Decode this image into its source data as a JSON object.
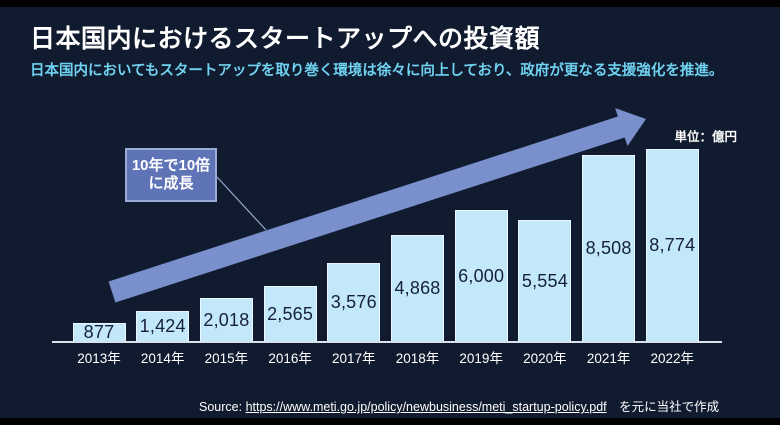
{
  "slide": {
    "title": "日本国内におけるスタートアップへの投資額",
    "subtitle": "日本国内においてもスタートアップを取り巻く環境は徐々に向上しており、政府が更なる支援強化を推進。",
    "unit_label": "単位：億円",
    "callout": {
      "line1": "10年で10倍",
      "line2": "に成長"
    },
    "source": {
      "prefix": "Source:",
      "url": "https://www.meti.go.jp/policy/newbusiness/meti_startup-policy.pdf",
      "suffix": "を元に当社で作成"
    }
  },
  "chart_data": {
    "type": "bar",
    "title": "日本国内におけるスタートアップへの投資額",
    "categories": [
      "2013年",
      "2014年",
      "2015年",
      "2016年",
      "2017年",
      "2018年",
      "2019年",
      "2020年",
      "2021年",
      "2022年"
    ],
    "values": [
      877,
      1424,
      2018,
      2565,
      3576,
      4868,
      6000,
      5554,
      8508,
      8774
    ],
    "value_labels": [
      "877",
      "1,424",
      "2,018",
      "2,565",
      "3,576",
      "4,868",
      "6,000",
      "5,554",
      "8,508",
      "8,774"
    ],
    "xlabel": "",
    "ylabel": "",
    "unit": "億円",
    "ylim": [
      0,
      9000
    ],
    "grid": false,
    "legend": "none",
    "annotation": "10年で10倍に成長"
  },
  "colors": {
    "background": "#111B2F",
    "letterbox": "#000000",
    "bar_fill": "#C2E8F9",
    "bar_border": "#EAF7FE",
    "bar_value_text": "#16203A",
    "arrow": "#7990CC",
    "callout_fill": "#5F74B6",
    "callout_border": "#9CACD8",
    "title_text": "#FFFFFF",
    "subtitle_text": "#6FD2F0",
    "axis_line": "#D9E2EC",
    "connector": "#97A7CE"
  }
}
